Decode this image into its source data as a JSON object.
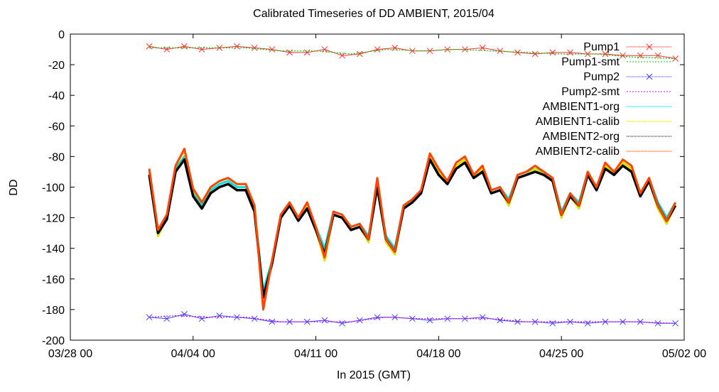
{
  "chart_data": {
    "type": "line",
    "title": "Calibrated Timeseries of DD AMBIENT, 2015/04",
    "xlabel": "In 2015 (GMT)",
    "ylabel": "DD",
    "xlim": [
      "2015-03-28 00:00",
      "2015-05-02 00:00"
    ],
    "ylim": [
      -200,
      0
    ],
    "x_ticks": [
      "03/28 00",
      "04/04 00",
      "04/11 00",
      "04/18 00",
      "04/25 00",
      "05/02 00"
    ],
    "y_ticks": [
      "0",
      "-20",
      "-40",
      "-60",
      "-80",
      "-100",
      "-120",
      "-140",
      "-160",
      "-180",
      "-200"
    ],
    "legend_position": "top-right",
    "colors": {
      "pump1": "#ff3030",
      "pump1_smt": "#00cc00",
      "pump2": "#4040ff",
      "pump2_smt": "#cc00ff",
      "ambient1_org": "#00e0e0",
      "ambient1_calib": "#e0e000",
      "ambient2_org": "#000000",
      "ambient2_calib": "#ff4500"
    },
    "series": [
      {
        "name": "Pump1",
        "x": [
          "2015-04-01 12:00",
          "2015-04-02 12:00",
          "2015-04-03 12:00",
          "2015-04-04 12:00",
          "2015-04-05 12:00",
          "2015-04-06 12:00",
          "2015-04-07 12:00",
          "2015-04-08 12:00",
          "2015-04-09 12:00",
          "2015-04-10 12:00",
          "2015-04-11 12:00",
          "2015-04-12 12:00",
          "2015-04-13 12:00",
          "2015-04-14 12:00",
          "2015-04-15 12:00",
          "2015-04-16 12:00",
          "2015-04-17 12:00",
          "2015-04-18 12:00",
          "2015-04-19 12:00",
          "2015-04-20 12:00",
          "2015-04-21 12:00",
          "2015-04-22 12:00",
          "2015-04-23 12:00",
          "2015-04-24 12:00",
          "2015-04-25 12:00",
          "2015-04-26 12:00",
          "2015-04-27 12:00",
          "2015-04-28 12:00",
          "2015-04-29 12:00",
          "2015-04-30 12:00",
          "2015-05-01 12:00"
        ],
        "values": [
          -8,
          -10,
          -8,
          -10,
          -9,
          -8,
          -9,
          -10,
          -12,
          -12,
          -10,
          -14,
          -13,
          -10,
          -9,
          -11,
          -11,
          -10,
          -10,
          -9,
          -11,
          -12,
          -13,
          -12,
          -12,
          -13,
          -13,
          -14,
          -14,
          -14,
          -16
        ]
      },
      {
        "name": "Pump1-smt",
        "x": [
          "2015-04-01 12:00",
          "2015-04-03 00:00",
          "2015-04-05 00:00",
          "2015-04-07 00:00",
          "2015-04-09 00:00",
          "2015-04-11 00:00",
          "2015-04-13 00:00",
          "2015-04-15 00:00",
          "2015-04-17 00:00",
          "2015-04-19 00:00",
          "2015-04-21 00:00",
          "2015-04-23 00:00",
          "2015-04-25 00:00",
          "2015-04-27 00:00",
          "2015-04-29 00:00",
          "2015-05-01 12:00"
        ],
        "values": [
          -9,
          -9,
          -9,
          -9,
          -11,
          -11,
          -13,
          -10,
          -11,
          -10,
          -11,
          -12,
          -13,
          -13,
          -15,
          -16
        ]
      },
      {
        "name": "Pump2",
        "x": [
          "2015-04-01 12:00",
          "2015-04-02 12:00",
          "2015-04-03 12:00",
          "2015-04-04 12:00",
          "2015-04-05 12:00",
          "2015-04-06 12:00",
          "2015-04-07 12:00",
          "2015-04-08 12:00",
          "2015-04-09 12:00",
          "2015-04-10 12:00",
          "2015-04-11 12:00",
          "2015-04-12 12:00",
          "2015-04-13 12:00",
          "2015-04-14 12:00",
          "2015-04-15 12:00",
          "2015-04-16 12:00",
          "2015-04-17 12:00",
          "2015-04-18 12:00",
          "2015-04-19 12:00",
          "2015-04-20 12:00",
          "2015-04-21 12:00",
          "2015-04-22 12:00",
          "2015-04-23 12:00",
          "2015-04-24 12:00",
          "2015-04-25 12:00",
          "2015-04-26 12:00",
          "2015-04-27 12:00",
          "2015-04-28 12:00",
          "2015-04-29 12:00",
          "2015-04-30 12:00",
          "2015-05-01 12:00"
        ],
        "values": [
          -185,
          -186,
          -183,
          -186,
          -184,
          -185,
          -186,
          -188,
          -188,
          -188,
          -187,
          -189,
          -187,
          -185,
          -185,
          -186,
          -187,
          -186,
          -186,
          -185,
          -187,
          -188,
          -188,
          -189,
          -188,
          -189,
          -188,
          -188,
          -188,
          -189,
          -189
        ]
      },
      {
        "name": "Pump2-smt",
        "x": [
          "2015-04-01 12:00",
          "2015-04-03 00:00",
          "2015-04-05 00:00",
          "2015-04-07 00:00",
          "2015-04-09 00:00",
          "2015-04-11 00:00",
          "2015-04-13 00:00",
          "2015-04-15 00:00",
          "2015-04-17 00:00",
          "2015-04-19 00:00",
          "2015-04-21 00:00",
          "2015-04-23 00:00",
          "2015-04-25 00:00",
          "2015-04-27 00:00",
          "2015-04-29 00:00",
          "2015-05-01 12:00"
        ],
        "values": [
          -185,
          -184,
          -185,
          -185,
          -188,
          -188,
          -188,
          -185,
          -186,
          -186,
          -186,
          -188,
          -188,
          -188,
          -188,
          -189
        ]
      },
      {
        "name": "AMBIENT1-org",
        "x": [
          "2015-04-01 12:00",
          "2015-04-02 00:00",
          "2015-04-02 12:00",
          "2015-04-03 00:00",
          "2015-04-03 12:00",
          "2015-04-04 00:00",
          "2015-04-04 12:00",
          "2015-04-05 00:00",
          "2015-04-05 12:00",
          "2015-04-06 00:00",
          "2015-04-06 12:00",
          "2015-04-07 00:00",
          "2015-04-07 12:00",
          "2015-04-08 00:00",
          "2015-04-08 12:00",
          "2015-04-09 00:00",
          "2015-04-09 12:00",
          "2015-04-10 00:00",
          "2015-04-10 12:00",
          "2015-04-11 00:00",
          "2015-04-11 12:00",
          "2015-04-12 00:00",
          "2015-04-12 12:00",
          "2015-04-13 00:00",
          "2015-04-13 12:00",
          "2015-04-14 00:00",
          "2015-04-14 12:00",
          "2015-04-15 00:00",
          "2015-04-15 12:00",
          "2015-04-16 00:00",
          "2015-04-16 12:00",
          "2015-04-17 00:00",
          "2015-04-17 12:00",
          "2015-04-18 00:00",
          "2015-04-18 12:00",
          "2015-04-19 00:00",
          "2015-04-19 12:00",
          "2015-04-20 00:00",
          "2015-04-20 12:00",
          "2015-04-21 00:00",
          "2015-04-21 12:00",
          "2015-04-22 00:00",
          "2015-04-22 12:00",
          "2015-04-23 00:00",
          "2015-04-23 12:00",
          "2015-04-24 00:00",
          "2015-04-24 12:00",
          "2015-04-25 00:00",
          "2015-04-25 12:00",
          "2015-04-26 00:00",
          "2015-04-26 12:00",
          "2015-04-27 00:00",
          "2015-04-27 12:00",
          "2015-04-28 00:00",
          "2015-04-28 12:00",
          "2015-04-29 00:00",
          "2015-04-29 12:00",
          "2015-04-30 00:00",
          "2015-04-30 12:00",
          "2015-05-01 00:00",
          "2015-05-01 12:00"
        ],
        "values": [
          -90,
          -128,
          -118,
          -88,
          -80,
          -104,
          -112,
          -102,
          -98,
          -96,
          -100,
          -100,
          -115,
          -168,
          -148,
          -118,
          -110,
          -120,
          -112,
          -126,
          -140,
          -116,
          -118,
          -126,
          -124,
          -132,
          -98,
          -132,
          -140,
          -112,
          -108,
          -102,
          -80,
          -90,
          -96,
          -86,
          -82,
          -92,
          -88,
          -102,
          -100,
          -108,
          -92,
          -90,
          -88,
          -90,
          -94,
          -116,
          -104,
          -110,
          -90,
          -100,
          -86,
          -90,
          -84,
          -88,
          -104,
          -94,
          -110,
          -120,
          -110
        ]
      },
      {
        "name": "AMBIENT1-calib",
        "x": [
          "2015-04-01 12:00",
          "2015-04-02 00:00",
          "2015-04-02 12:00",
          "2015-04-03 00:00",
          "2015-04-03 12:00",
          "2015-04-04 00:00",
          "2015-04-04 12:00",
          "2015-04-05 00:00",
          "2015-04-05 12:00",
          "2015-04-06 00:00",
          "2015-04-06 12:00",
          "2015-04-07 00:00",
          "2015-04-07 12:00",
          "2015-04-08 00:00",
          "2015-04-08 12:00",
          "2015-04-09 00:00",
          "2015-04-09 12:00",
          "2015-04-10 00:00",
          "2015-04-10 12:00",
          "2015-04-11 00:00",
          "2015-04-11 12:00",
          "2015-04-12 00:00",
          "2015-04-12 12:00",
          "2015-04-13 00:00",
          "2015-04-13 12:00",
          "2015-04-14 00:00",
          "2015-04-14 12:00",
          "2015-04-15 00:00",
          "2015-04-15 12:00",
          "2015-04-16 00:00",
          "2015-04-16 12:00",
          "2015-04-17 00:00",
          "2015-04-17 12:00",
          "2015-04-18 00:00",
          "2015-04-18 12:00",
          "2015-04-19 00:00",
          "2015-04-19 12:00",
          "2015-04-20 00:00",
          "2015-04-20 12:00",
          "2015-04-21 00:00",
          "2015-04-21 12:00",
          "2015-04-22 00:00",
          "2015-04-22 12:00",
          "2015-04-23 00:00",
          "2015-04-23 12:00",
          "2015-04-24 00:00",
          "2015-04-24 12:00",
          "2015-04-25 00:00",
          "2015-04-25 12:00",
          "2015-04-26 00:00",
          "2015-04-26 12:00",
          "2015-04-27 00:00",
          "2015-04-27 12:00",
          "2015-04-28 00:00",
          "2015-04-28 12:00",
          "2015-04-29 00:00",
          "2015-04-29 12:00",
          "2015-04-30 00:00",
          "2015-04-30 12:00",
          "2015-05-01 00:00",
          "2015-05-01 12:00"
        ],
        "values": [
          -88,
          -132,
          -120,
          -86,
          -76,
          -102,
          -110,
          -100,
          -96,
          -94,
          -98,
          -98,
          -112,
          -175,
          -150,
          -120,
          -112,
          -122,
          -112,
          -128,
          -148,
          -118,
          -120,
          -128,
          -126,
          -136,
          -96,
          -136,
          -144,
          -114,
          -110,
          -104,
          -80,
          -90,
          -98,
          -86,
          -82,
          -94,
          -88,
          -104,
          -102,
          -112,
          -94,
          -92,
          -88,
          -92,
          -96,
          -120,
          -106,
          -114,
          -92,
          -102,
          -86,
          -92,
          -84,
          -88,
          -106,
          -96,
          -114,
          -124,
          -112
        ]
      },
      {
        "name": "AMBIENT2-org",
        "x": [
          "2015-04-01 12:00",
          "2015-04-02 00:00",
          "2015-04-02 12:00",
          "2015-04-03 00:00",
          "2015-04-03 12:00",
          "2015-04-04 00:00",
          "2015-04-04 12:00",
          "2015-04-05 00:00",
          "2015-04-05 12:00",
          "2015-04-06 00:00",
          "2015-04-06 12:00",
          "2015-04-07 00:00",
          "2015-04-07 12:00",
          "2015-04-08 00:00",
          "2015-04-08 12:00",
          "2015-04-09 00:00",
          "2015-04-09 12:00",
          "2015-04-10 00:00",
          "2015-04-10 12:00",
          "2015-04-11 00:00",
          "2015-04-11 12:00",
          "2015-04-12 00:00",
          "2015-04-12 12:00",
          "2015-04-13 00:00",
          "2015-04-13 12:00",
          "2015-04-14 00:00",
          "2015-04-14 12:00",
          "2015-04-15 00:00",
          "2015-04-15 12:00",
          "2015-04-16 00:00",
          "2015-04-16 12:00",
          "2015-04-17 00:00",
          "2015-04-17 12:00",
          "2015-04-18 00:00",
          "2015-04-18 12:00",
          "2015-04-19 00:00",
          "2015-04-19 12:00",
          "2015-04-20 00:00",
          "2015-04-20 12:00",
          "2015-04-21 00:00",
          "2015-04-21 12:00",
          "2015-04-22 00:00",
          "2015-04-22 12:00",
          "2015-04-23 00:00",
          "2015-04-23 12:00",
          "2015-04-24 00:00",
          "2015-04-24 12:00",
          "2015-04-25 00:00",
          "2015-04-25 12:00",
          "2015-04-26 00:00",
          "2015-04-26 12:00",
          "2015-04-27 00:00",
          "2015-04-27 12:00",
          "2015-04-28 00:00",
          "2015-04-28 12:00",
          "2015-04-29 00:00",
          "2015-04-29 12:00",
          "2015-04-30 00:00",
          "2015-04-30 12:00",
          "2015-05-01 00:00",
          "2015-05-01 12:00"
        ],
        "values": [
          -92,
          -130,
          -121,
          -90,
          -82,
          -106,
          -114,
          -104,
          -100,
          -98,
          -102,
          -102,
          -116,
          -172,
          -150,
          -120,
          -112,
          -122,
          -114,
          -128,
          -144,
          -118,
          -120,
          -128,
          -126,
          -134,
          -100,
          -134,
          -142,
          -114,
          -110,
          -104,
          -82,
          -92,
          -98,
          -88,
          -84,
          -94,
          -90,
          -104,
          -102,
          -110,
          -94,
          -92,
          -90,
          -92,
          -96,
          -118,
          -106,
          -112,
          -92,
          -102,
          -88,
          -92,
          -86,
          -90,
          -106,
          -96,
          -112,
          -122,
          -112
        ]
      },
      {
        "name": "AMBIENT2-calib",
        "x": [
          "2015-04-01 12:00",
          "2015-04-02 00:00",
          "2015-04-02 12:00",
          "2015-04-03 00:00",
          "2015-04-03 12:00",
          "2015-04-04 00:00",
          "2015-04-04 12:00",
          "2015-04-05 00:00",
          "2015-04-05 12:00",
          "2015-04-06 00:00",
          "2015-04-06 12:00",
          "2015-04-07 00:00",
          "2015-04-07 12:00",
          "2015-04-08 00:00",
          "2015-04-08 12:00",
          "2015-04-09 00:00",
          "2015-04-09 12:00",
          "2015-04-10 00:00",
          "2015-04-10 12:00",
          "2015-04-11 00:00",
          "2015-04-11 12:00",
          "2015-04-12 00:00",
          "2015-04-12 12:00",
          "2015-04-13 00:00",
          "2015-04-13 12:00",
          "2015-04-14 00:00",
          "2015-04-14 12:00",
          "2015-04-15 00:00",
          "2015-04-15 12:00",
          "2015-04-16 00:00",
          "2015-04-16 12:00",
          "2015-04-17 00:00",
          "2015-04-17 12:00",
          "2015-04-18 00:00",
          "2015-04-18 12:00",
          "2015-04-19 00:00",
          "2015-04-19 12:00",
          "2015-04-20 00:00",
          "2015-04-20 12:00",
          "2015-04-21 00:00",
          "2015-04-21 12:00",
          "2015-04-22 00:00",
          "2015-04-22 12:00",
          "2015-04-23 00:00",
          "2015-04-23 12:00",
          "2015-04-24 00:00",
          "2015-04-24 12:00",
          "2015-04-25 00:00",
          "2015-04-25 12:00",
          "2015-04-26 00:00",
          "2015-04-26 12:00",
          "2015-04-27 00:00",
          "2015-04-27 12:00",
          "2015-04-28 00:00",
          "2015-04-28 12:00",
          "2015-04-29 00:00",
          "2015-04-29 12:00",
          "2015-04-30 00:00",
          "2015-04-30 12:00",
          "2015-05-01 00:00",
          "2015-05-01 12:00"
        ],
        "values": [
          -88,
          -128,
          -118,
          -86,
          -75,
          -101,
          -110,
          -100,
          -96,
          -94,
          -98,
          -98,
          -112,
          -180,
          -148,
          -118,
          -110,
          -120,
          -110,
          -126,
          -146,
          -116,
          -118,
          -126,
          -124,
          -134,
          -94,
          -134,
          -142,
          -112,
          -108,
          -102,
          -78,
          -88,
          -96,
          -84,
          -80,
          -92,
          -86,
          -102,
          -100,
          -110,
          -92,
          -90,
          -86,
          -90,
          -94,
          -118,
          -104,
          -112,
          -90,
          -100,
          -84,
          -90,
          -82,
          -86,
          -104,
          -94,
          -112,
          -122,
          -110
        ]
      }
    ]
  }
}
